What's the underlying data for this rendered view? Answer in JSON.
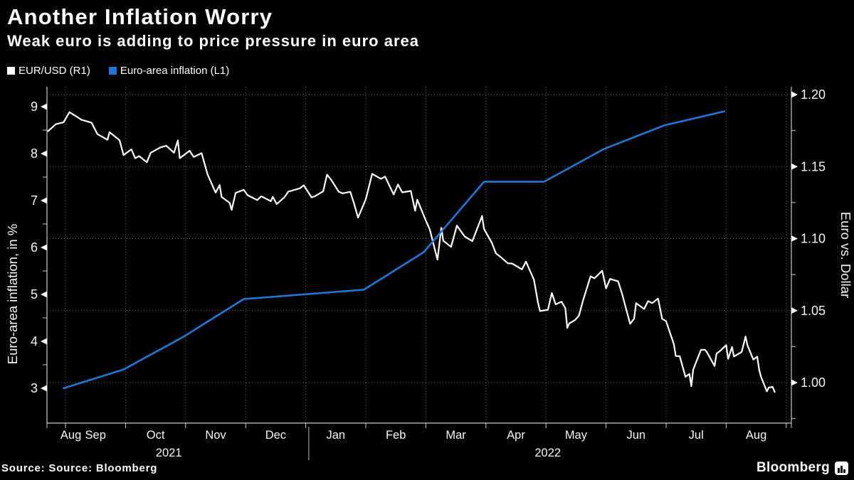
{
  "header": {
    "title": "Another Inflation Worry",
    "subtitle": "Weak euro is adding to price pressure in euro area"
  },
  "legend": {
    "items": [
      {
        "label": "EUR/USD (R1)",
        "color": "#ffffff"
      },
      {
        "label": "Euro-area inflation (L1)",
        "color": "#1e78d7"
      }
    ]
  },
  "chart_data": {
    "type": "line",
    "background": "#000000",
    "grid": "dotted",
    "legend_position": "top-left",
    "left_axis": {
      "title": "Euro-area inflation, in %",
      "ticks": [
        3,
        4,
        5,
        6,
        7,
        8,
        9
      ],
      "minor_ticks": [
        3.5,
        4.5,
        5.5,
        6.5,
        7.5,
        8.5
      ],
      "range": [
        2.3,
        9.4
      ]
    },
    "right_axis": {
      "title": "Euro vs. Dollar",
      "ticks": [
        1.0,
        1.05,
        1.1,
        1.15,
        1.2
      ],
      "minor_ticks": [
        0.975,
        1.025,
        1.075,
        1.125,
        1.175
      ],
      "range": [
        0.978,
        1.205
      ]
    },
    "x_axis": {
      "months": [
        {
          "label": "Aug",
          "m": 1.09
        },
        {
          "label": "Sep",
          "m": 1.5
        },
        {
          "label": "Oct",
          "m": 2.5
        },
        {
          "label": "Nov",
          "m": 3.5
        },
        {
          "label": "Dec",
          "m": 4.5
        },
        {
          "label": "Jan",
          "m": 5.5
        },
        {
          "label": "Feb",
          "m": 6.5
        },
        {
          "label": "Mar",
          "m": 7.5
        },
        {
          "label": "Apr",
          "m": 8.5
        },
        {
          "label": "May",
          "m": 9.5
        },
        {
          "label": "Jun",
          "m": 10.5
        },
        {
          "label": "Jul",
          "m": 11.5
        },
        {
          "label": "Aug",
          "m": 12.5
        }
      ],
      "years": [
        {
          "label": "2021",
          "m": 2.72
        },
        {
          "label": "2022",
          "m": 9.03
        }
      ],
      "year_divider_m": 5.05
    },
    "series": [
      {
        "name": "EUR/USD (R1)",
        "axis": "right",
        "color": "#ffffff",
        "points": [
          [
            "2021-08-23",
            1.1746
          ],
          [
            "2021-08-27",
            1.1794
          ],
          [
            "2021-08-31",
            1.1808
          ],
          [
            "2021-09-03",
            1.1878
          ],
          [
            "2021-09-07",
            1.1843
          ],
          [
            "2021-09-09",
            1.1825
          ],
          [
            "2021-09-14",
            1.1805
          ],
          [
            "2021-09-17",
            1.1725
          ],
          [
            "2021-09-22",
            1.1686
          ],
          [
            "2021-09-23",
            1.1739
          ],
          [
            "2021-09-28",
            1.1683
          ],
          [
            "2021-09-30",
            1.158
          ],
          [
            "2021-10-04",
            1.162
          ],
          [
            "2021-10-06",
            1.1558
          ],
          [
            "2021-10-08",
            1.1573
          ],
          [
            "2021-10-12",
            1.153
          ],
          [
            "2021-10-14",
            1.1596
          ],
          [
            "2021-10-19",
            1.1633
          ],
          [
            "2021-10-22",
            1.1645
          ],
          [
            "2021-10-26",
            1.1596
          ],
          [
            "2021-10-28",
            1.1682
          ],
          [
            "2021-10-29",
            1.1558
          ],
          [
            "2021-11-03",
            1.161
          ],
          [
            "2021-11-05",
            1.1567
          ],
          [
            "2021-11-09",
            1.1593
          ],
          [
            "2021-11-12",
            1.1445
          ],
          [
            "2021-11-16",
            1.1319
          ],
          [
            "2021-11-18",
            1.1372
          ],
          [
            "2021-11-19",
            1.1289
          ],
          [
            "2021-11-23",
            1.1248
          ],
          [
            "2021-11-24",
            1.1199
          ],
          [
            "2021-11-26",
            1.1317
          ],
          [
            "2021-11-30",
            1.1339
          ],
          [
            "2021-12-02",
            1.1301
          ],
          [
            "2021-12-07",
            1.1267
          ],
          [
            "2021-12-09",
            1.1294
          ],
          [
            "2021-12-14",
            1.126
          ],
          [
            "2021-12-15",
            1.129
          ],
          [
            "2021-12-17",
            1.124
          ],
          [
            "2021-12-21",
            1.1287
          ],
          [
            "2021-12-23",
            1.1326
          ],
          [
            "2021-12-29",
            1.1349
          ],
          [
            "2021-12-31",
            1.137
          ],
          [
            "2022-01-04",
            1.1286
          ],
          [
            "2022-01-06",
            1.1296
          ],
          [
            "2022-01-10",
            1.1328
          ],
          [
            "2022-01-12",
            1.1444
          ],
          [
            "2022-01-14",
            1.1411
          ],
          [
            "2022-01-18",
            1.1326
          ],
          [
            "2022-01-20",
            1.1314
          ],
          [
            "2022-01-24",
            1.1325
          ],
          [
            "2022-01-26",
            1.124
          ],
          [
            "2022-01-28",
            1.1145
          ],
          [
            "2022-02-01",
            1.1273
          ],
          [
            "2022-02-04",
            1.145
          ],
          [
            "2022-02-08",
            1.1415
          ],
          [
            "2022-02-10",
            1.143
          ],
          [
            "2022-02-14",
            1.1306
          ],
          [
            "2022-02-16",
            1.1376
          ],
          [
            "2022-02-18",
            1.1321
          ],
          [
            "2022-02-22",
            1.1331
          ],
          [
            "2022-02-24",
            1.1193
          ],
          [
            "2022-02-25",
            1.127
          ],
          [
            "2022-03-01",
            1.1125
          ],
          [
            "2022-03-03",
            1.1065
          ],
          [
            "2022-03-07",
            1.0854
          ],
          [
            "2022-03-09",
            1.1075
          ],
          [
            "2022-03-10",
            1.0985
          ],
          [
            "2022-03-14",
            1.0942
          ],
          [
            "2022-03-17",
            1.109
          ],
          [
            "2022-03-21",
            1.1015
          ],
          [
            "2022-03-25",
            1.0982
          ],
          [
            "2022-03-30",
            1.1157
          ],
          [
            "2022-03-31",
            1.1067
          ],
          [
            "2022-04-04",
            1.097
          ],
          [
            "2022-04-06",
            1.0897
          ],
          [
            "2022-04-08",
            1.0876
          ],
          [
            "2022-04-12",
            1.0828
          ],
          [
            "2022-04-14",
            1.0827
          ],
          [
            "2022-04-19",
            1.0786
          ],
          [
            "2022-04-21",
            1.084
          ],
          [
            "2022-04-25",
            1.0714
          ],
          [
            "2022-04-27",
            1.0556
          ],
          [
            "2022-04-28",
            1.0497
          ],
          [
            "2022-05-02",
            1.0505
          ],
          [
            "2022-05-04",
            1.0622
          ],
          [
            "2022-05-06",
            1.0543
          ],
          [
            "2022-05-09",
            1.0562
          ],
          [
            "2022-05-11",
            1.0516
          ],
          [
            "2022-05-12",
            1.038
          ],
          [
            "2022-05-13",
            1.0411
          ],
          [
            "2022-05-16",
            1.0434
          ],
          [
            "2022-05-18",
            1.0465
          ],
          [
            "2022-05-20",
            1.0564
          ],
          [
            "2022-05-24",
            1.0738
          ],
          [
            "2022-05-26",
            1.0724
          ],
          [
            "2022-05-30",
            1.0777
          ],
          [
            "2022-06-01",
            1.0654
          ],
          [
            "2022-06-03",
            1.072
          ],
          [
            "2022-06-07",
            1.0703
          ],
          [
            "2022-06-09",
            1.0617
          ],
          [
            "2022-06-13",
            1.0408
          ],
          [
            "2022-06-15",
            1.0444
          ],
          [
            "2022-06-16",
            1.0551
          ],
          [
            "2022-06-20",
            1.0511
          ],
          [
            "2022-06-22",
            1.0566
          ],
          [
            "2022-06-24",
            1.0552
          ],
          [
            "2022-06-27",
            1.0583
          ],
          [
            "2022-06-29",
            1.0443
          ],
          [
            "2022-07-01",
            1.0426
          ],
          [
            "2022-07-05",
            1.0266
          ],
          [
            "2022-07-06",
            1.0184
          ],
          [
            "2022-07-08",
            1.0183
          ],
          [
            "2022-07-11",
            1.004
          ],
          [
            "2022-07-13",
            1.006
          ],
          [
            "2022-07-14",
            0.9975
          ],
          [
            "2022-07-15",
            1.0091
          ],
          [
            "2022-07-19",
            1.0227
          ],
          [
            "2022-07-21",
            1.0228
          ],
          [
            "2022-07-22",
            1.0212
          ],
          [
            "2022-07-26",
            1.0115
          ],
          [
            "2022-07-27",
            1.0201
          ],
          [
            "2022-07-29",
            1.0221
          ],
          [
            "2022-08-01",
            1.026
          ],
          [
            "2022-08-02",
            1.0165
          ],
          [
            "2022-08-04",
            1.0247
          ],
          [
            "2022-08-05",
            1.0181
          ],
          [
            "2022-08-09",
            1.0213
          ],
          [
            "2022-08-11",
            1.032
          ],
          [
            "2022-08-12",
            1.0259
          ],
          [
            "2022-08-15",
            1.016
          ],
          [
            "2022-08-17",
            1.018
          ],
          [
            "2022-08-18",
            1.009
          ],
          [
            "2022-08-19",
            1.0039
          ],
          [
            "2022-08-22",
            0.9939
          ],
          [
            "2022-08-23",
            0.9966
          ],
          [
            "2022-08-25",
            0.997
          ],
          [
            "2022-08-26",
            0.9935
          ]
        ]
      },
      {
        "name": "Euro-area inflation (L1)",
        "axis": "left",
        "color": "#1e78d7",
        "points": [
          [
            "2021-08-31",
            3.0
          ],
          [
            "2021-09-30",
            3.4
          ],
          [
            "2021-10-31",
            4.1
          ],
          [
            "2021-11-30",
            4.9
          ],
          [
            "2021-12-31",
            5.0
          ],
          [
            "2022-01-31",
            5.1
          ],
          [
            "2022-02-28",
            5.9
          ],
          [
            "2022-03-31",
            7.4
          ],
          [
            "2022-04-30",
            7.4
          ],
          [
            "2022-05-31",
            8.1
          ],
          [
            "2022-06-30",
            8.6
          ],
          [
            "2022-07-31",
            8.9
          ]
        ]
      }
    ]
  },
  "footer": {
    "source": "Source: Source: Bloomberg",
    "brand": "Bloomberg"
  }
}
